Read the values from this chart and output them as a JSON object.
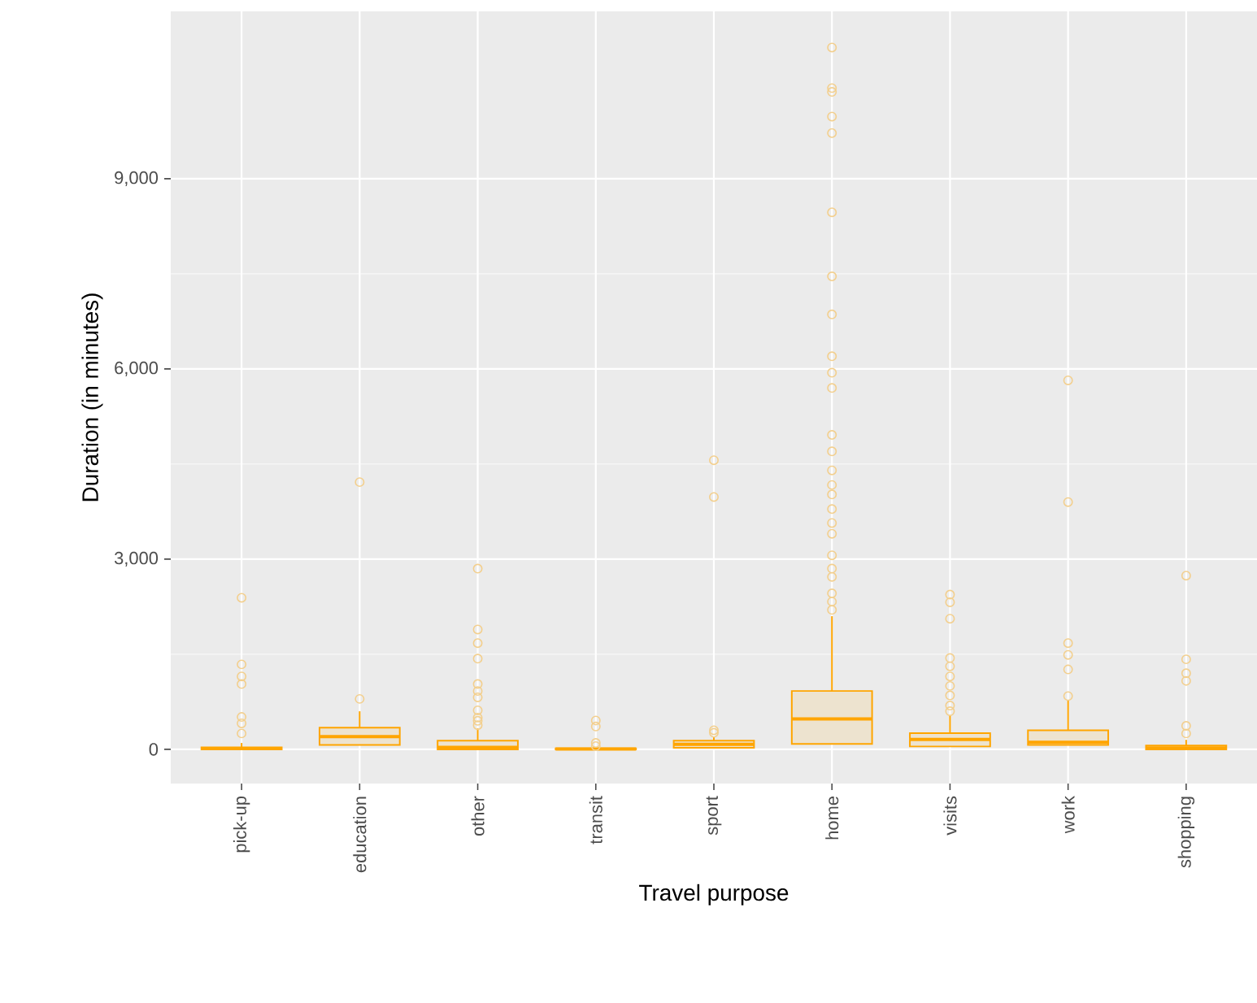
{
  "chart_data": {
    "type": "box",
    "xlabel": "Travel purpose",
    "ylabel": "Duration (in minutes)",
    "categories": [
      "pick-up",
      "education",
      "other",
      "transit",
      "sport",
      "home",
      "visits",
      "work",
      "shopping"
    ],
    "color": "#ffa500",
    "marker": "circle",
    "grid": true,
    "ylim": [
      -540,
      11640
    ],
    "yticks": [
      0,
      {
        "value": 3000,
        "label": "3,000"
      },
      {
        "value": 6000,
        "label": "6,000"
      },
      {
        "value": 9000,
        "label": "9,000"
      }
    ],
    "boxes": [
      {
        "q1": 0,
        "median": 10,
        "q3": 30,
        "high": 100,
        "outliers": [
          2390,
          1340,
          1150,
          1030,
          510,
          410,
          250
        ]
      },
      {
        "q1": 70,
        "median": 200,
        "q3": 340,
        "high": 600,
        "outliers": [
          795,
          4215
        ]
      },
      {
        "q1": 0,
        "median": 30,
        "q3": 135,
        "high": 330,
        "outliers": [
          2850,
          1890,
          1675,
          1430,
          1030,
          920,
          820,
          615,
          500,
          450,
          380
        ]
      },
      {
        "q1": 0,
        "median": 5,
        "q3": 15,
        "high": 30,
        "outliers": [
          455,
          360,
          100,
          50
        ]
      },
      {
        "q1": 25,
        "median": 80,
        "q3": 135,
        "high": 200,
        "outliers": [
          4560,
          3980,
          300,
          260
        ]
      },
      {
        "q1": 85,
        "median": 480,
        "q3": 920,
        "high": 2100,
        "outliers": [
          11070,
          10430,
          10370,
          9980,
          9720,
          8470,
          7460,
          6860,
          6200,
          5940,
          5700,
          4960,
          4700,
          4400,
          4170,
          4020,
          3790,
          3570,
          3400,
          3060,
          2850,
          2720,
          2460,
          2330,
          2200
        ]
      },
      {
        "q1": 45,
        "median": 155,
        "q3": 255,
        "high": 540,
        "outliers": [
          2440,
          2320,
          2060,
          1440,
          1310,
          1150,
          1000,
          850,
          690,
          600
        ]
      },
      {
        "q1": 70,
        "median": 110,
        "q3": 300,
        "high": 770,
        "outliers": [
          5820,
          3900,
          1675,
          1490,
          1260,
          840
        ]
      },
      {
        "q1": 0,
        "median": 20,
        "q3": 60,
        "high": 150,
        "outliers": [
          2740,
          1420,
          1200,
          1080,
          370,
          250
        ]
      }
    ]
  }
}
